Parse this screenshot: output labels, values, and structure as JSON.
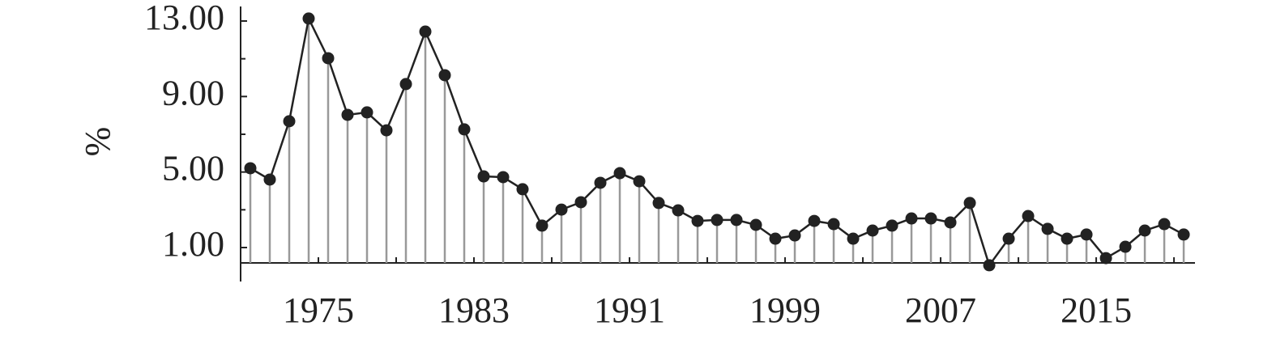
{
  "chart_data": {
    "type": "line",
    "ylabel": "%",
    "x": [
      1971,
      1972,
      1973,
      1974,
      1975,
      1976,
      1977,
      1978,
      1979,
      1980,
      1981,
      1982,
      1983,
      1984,
      1985,
      1986,
      1987,
      1988,
      1989,
      1990,
      1991,
      1992,
      1993,
      1994,
      1995,
      1996,
      1997,
      1998,
      1999,
      2000,
      2001,
      2002,
      2003,
      2004,
      2005,
      2006,
      2007,
      2008,
      2009,
      2010,
      2011,
      2012,
      2013,
      2014,
      2015,
      2016,
      2017,
      2018,
      2019
    ],
    "series": [
      {
        "color": "#222222",
        "stem_color": "#999999",
        "values": [
          5.2,
          4.6,
          7.69,
          13.13,
          11.03,
          8.03,
          8.16,
          7.21,
          9.66,
          12.44,
          10.13,
          7.26,
          4.77,
          4.73,
          4.09,
          2.16,
          3.01,
          3.4,
          4.43,
          4.94,
          4.51,
          3.36,
          2.97,
          2.41,
          2.46,
          2.46,
          2.2,
          1.47,
          1.64,
          2.41,
          2.24,
          1.47,
          1.9,
          2.16,
          2.54,
          2.54,
          2.33,
          3.36,
          0.06,
          1.47,
          2.67,
          1.99,
          1.47,
          1.69,
          0.44,
          1.04,
          1.9,
          2.24,
          1.69
        ]
      }
    ],
    "xlim": [
      1970.5,
      2019.58
    ],
    "xticks": [
      {
        "value": 1974.5,
        "label": "1975"
      },
      {
        "value": 1982.5,
        "label": "1983"
      },
      {
        "value": 1990.5,
        "label": "1991"
      },
      {
        "value": 1998.5,
        "label": "1999"
      },
      {
        "value": 2006.5,
        "label": "2007"
      },
      {
        "value": 2014.5,
        "label": "2015"
      }
    ],
    "xminor_ticks": [
      1978.5,
      1986.5,
      1994.5,
      2002.5,
      2010.5,
      2018.5
    ],
    "ylim": [
      -0.8,
      13.77
    ],
    "yticks": [
      {
        "value": 1,
        "label": "1.00"
      },
      {
        "value": 5,
        "label": "5.00"
      },
      {
        "value": 9,
        "label": "9.00"
      },
      {
        "value": 13,
        "label": "13.00"
      }
    ],
    "yminor_ticks": [
      3,
      7,
      11
    ]
  }
}
